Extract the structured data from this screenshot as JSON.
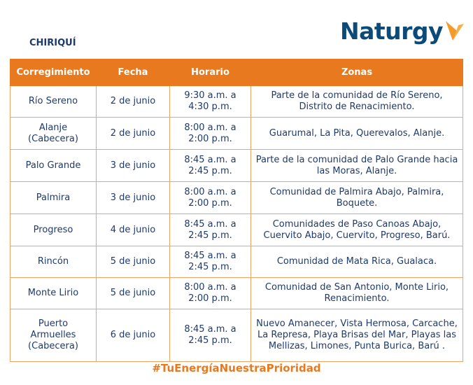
{
  "header": {
    "region": "CHIRIQUÍ",
    "logo": "Naturgy"
  },
  "table": {
    "columns": [
      "Corregimiento",
      "Fecha",
      "Horario",
      "Zonas"
    ],
    "rows": [
      [
        "Río Sereno",
        "2 de junio",
        "9:30 a.m. a 4:30 p.m.",
        "Parte de la comunidad de Río Sereno, Distrito de Renacimiento."
      ],
      [
        "Alanje (Cabecera)",
        "2 de junio",
        "8:00 a.m. a 2:00 p.m.",
        "Guarumal, La Pita, Querevalos, Alanje."
      ],
      [
        "Palo Grande",
        "3 de junio",
        "8:45 a.m. a 2:45 p.m.",
        "Parte de la comunidad de Palo Grande hacia las Moras, Alanje."
      ],
      [
        "Palmira",
        "3 de junio",
        "8:00 a.m. a 2:00 p.m.",
        "Comunidad de Palmira Abajo, Palmira, Boquete."
      ],
      [
        "Progreso",
        "4 de junio",
        "8:45 a.m. a 2:45 p.m.",
        "Comunidades de Paso Canoas Abajo, Cuervito Abajo, Cuervito, Progreso, Barú."
      ],
      [
        "Rincón",
        "5 de junio",
        "8:45 a.m. a 2:45 p.m.",
        "Comunidad de Mata Rica, Gualaca."
      ],
      [
        "Monte Lirio",
        "5 de junio",
        "8:00 a.m. a 2:00 p.m.",
        "Comunidad de San Antonio, Monte Lirio, Renacimiento."
      ],
      [
        "Puerto Armuelles (Cabecera)",
        "6 de junio",
        "8:45 a.m. a 2:45 p.m.",
        "Nuevo Amanecer, Vista Hermosa, Carcache, La Represa, Playa Brisas del Mar, Playas las Mellizas, Limones, Punta Burica, Barú ."
      ]
    ]
  },
  "footer": {
    "hashtag": "#TuEnergíaNuestraPrioridad"
  }
}
